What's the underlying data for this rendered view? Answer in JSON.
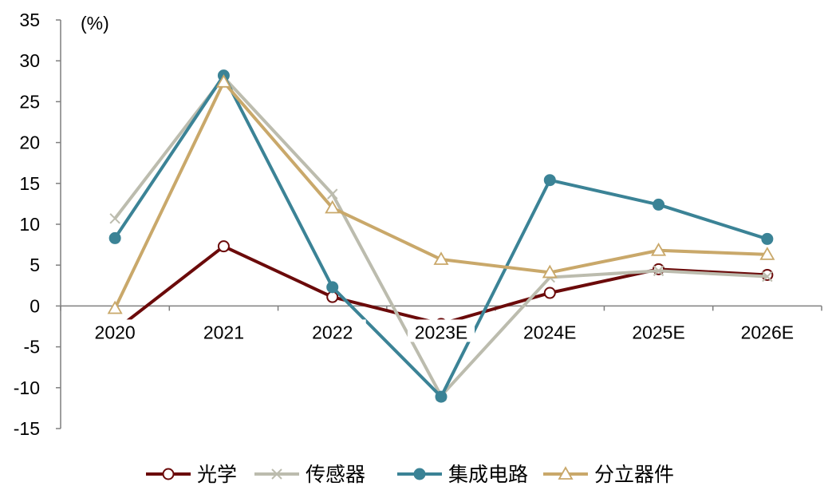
{
  "chart_data": {
    "type": "line",
    "title": "",
    "unit_label": "(%)",
    "xlabel": "",
    "ylabel": "",
    "categories": [
      "2020",
      "2021",
      "2022",
      "2023E",
      "2024E",
      "2025E",
      "2026E"
    ],
    "yticks": [
      "35",
      "30",
      "25",
      "20",
      "15",
      "10",
      "5",
      "0",
      "-5",
      "-10",
      "-15"
    ],
    "ylim": [
      -15,
      35
    ],
    "grid": false,
    "legend_position": "bottom",
    "series": [
      {
        "name": "光学",
        "color": "#6B0A0A",
        "marker": "circle-open",
        "values": [
          -3.0,
          7.3,
          1.1,
          -2.2,
          1.6,
          4.5,
          3.8
        ]
      },
      {
        "name": "传感器",
        "color": "#BCBCAE",
        "marker": "x",
        "values": [
          10.7,
          28.0,
          13.7,
          -11.0,
          3.5,
          4.3,
          3.6
        ]
      },
      {
        "name": "集成电路",
        "color": "#3B8396",
        "marker": "circle-filled",
        "values": [
          8.3,
          28.2,
          2.3,
          -11.1,
          15.4,
          12.4,
          8.2
        ]
      },
      {
        "name": "分立器件",
        "color": "#C9A86A",
        "marker": "triangle-open",
        "values": [
          -0.3,
          27.4,
          12.0,
          5.7,
          4.1,
          6.8,
          6.3
        ]
      }
    ]
  }
}
